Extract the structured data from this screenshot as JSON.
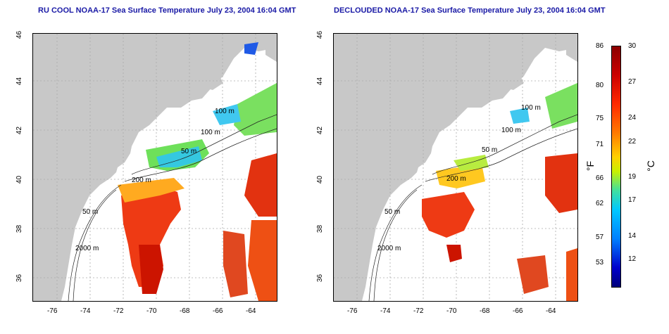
{
  "titles": {
    "left": "RU COOL NOAA-17 Sea Surface Temperature July 23, 2004 16:04 GMT",
    "right": "DECLOUDED NOAA-17 Sea Surface Temperature July 23, 2004 16:04 GMT"
  },
  "map_axes": {
    "x_ticks": [
      "-76",
      "-74",
      "-72",
      "-70",
      "-68",
      "-66",
      "-64"
    ],
    "y_ticks": [
      "46",
      "44",
      "42",
      "40",
      "38",
      "36"
    ]
  },
  "contour_labels": [
    "100 m",
    "100 m",
    "50 m",
    "200 m",
    "50 m",
    "2000 m"
  ],
  "colorbar": {
    "fahrenheit_unit": "°F",
    "celsius_unit": "°C",
    "fahrenheit_ticks": [
      "86",
      "80",
      "75",
      "71",
      "66",
      "62",
      "57",
      "53"
    ],
    "celsius_ticks": [
      "30",
      "27",
      "24",
      "22",
      "19",
      "17",
      "14",
      "12"
    ]
  }
}
